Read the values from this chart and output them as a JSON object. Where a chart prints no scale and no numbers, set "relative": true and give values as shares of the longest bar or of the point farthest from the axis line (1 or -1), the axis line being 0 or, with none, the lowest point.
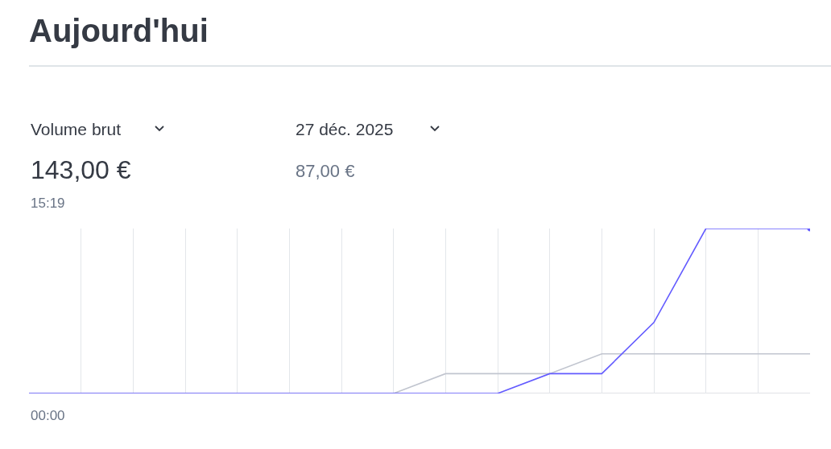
{
  "chart_data": {
    "type": "line",
    "title": "Aujourd'hui",
    "relative": true,
    "annotations": [
      "Volume brut",
      "27 déc. 2025",
      "143,00 €",
      "15:19",
      "87,00 €",
      "00:00"
    ],
    "categories": [
      null,
      null,
      null,
      null,
      null,
      null,
      null,
      null,
      null,
      null,
      null,
      null,
      null,
      null,
      null,
      null
    ],
    "grid": "x",
    "series": [
      {
        "color": "#c1c5cf",
        "values": [
          0,
          0,
          0,
          0,
          0,
          0,
          0,
          0,
          0.12,
          0.12,
          0.12,
          0.24,
          0.24,
          0.24,
          0.24,
          0.24
        ]
      },
      {
        "color": "#635bff",
        "values": [
          0,
          0,
          0,
          0,
          0,
          0,
          0,
          0,
          0,
          0,
          0.12,
          0.12,
          0.43,
          1,
          1,
          1
        ]
      }
    ]
  }
}
